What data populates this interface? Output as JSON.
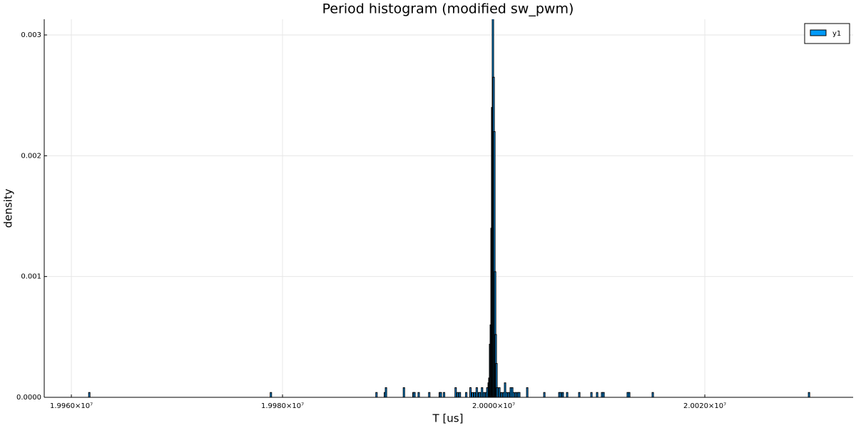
{
  "chart_data": {
    "type": "bar",
    "title": "Period histogram (modified sw_pwm)",
    "x_label": "T [us]",
    "y_label": "density",
    "series": [
      {
        "name": "y1",
        "color": "#009af9",
        "edge_color": "#000000",
        "x": [
          19961700,
          19978900,
          19988900,
          19989700,
          19989800,
          19991500,
          19992400,
          19992500,
          19992900,
          19993900,
          19994900,
          19995000,
          19995300,
          19996400,
          19996600,
          19996800,
          19997400,
          19997800,
          19998000,
          19998200,
          19998400,
          19998600,
          19998700,
          19998900,
          19999100,
          19999300,
          19999400,
          19999530,
          19999590,
          19999660,
          19999730,
          19999800,
          19999860,
          19999930,
          20000000,
          20000070,
          20000140,
          20000200,
          20000270,
          20000340,
          20000540,
          20000740,
          20000950,
          20001080,
          20001220,
          20001420,
          20001620,
          20001760,
          20001890,
          20002100,
          20002300,
          20002430,
          20003180,
          20004800,
          20006220,
          20006350,
          20006550,
          20006960,
          20008110,
          20009260,
          20009800,
          20010270,
          20010410,
          20012700,
          20012840,
          20015070,
          20029870
        ],
        "values": [
          4e-05,
          4e-05,
          4e-05,
          4e-05,
          8e-05,
          8e-05,
          4e-05,
          4e-05,
          4e-05,
          4e-05,
          4e-05,
          4e-05,
          4e-05,
          8e-05,
          4e-05,
          4e-05,
          4e-05,
          8e-05,
          4e-05,
          4e-05,
          8e-05,
          4e-05,
          4e-05,
          8e-05,
          4e-05,
          4e-05,
          8e-05,
          0.00012,
          0.00016,
          0.00044,
          0.0006,
          0.0014,
          0.0024,
          0.0032,
          0.00265,
          0.0022,
          0.00104,
          0.00052,
          0.00028,
          8e-05,
          8e-05,
          4e-05,
          4e-05,
          0.00012,
          4e-05,
          4e-05,
          8e-05,
          8e-05,
          4e-05,
          4e-05,
          4e-05,
          4e-05,
          8e-05,
          4e-05,
          4e-05,
          4e-05,
          4e-05,
          4e-05,
          4e-05,
          4e-05,
          4e-05,
          4e-05,
          4e-05,
          4e-05,
          4e-05,
          4e-05,
          4e-05
        ]
      }
    ],
    "xlim": [
      19957430,
      20034050
    ],
    "ylim": [
      0,
      0.00313
    ],
    "xticks": [
      {
        "value": 19960000,
        "label": "1.9960×10⁷"
      },
      {
        "value": 19980000,
        "label": "1.9980×10⁷"
      },
      {
        "value": 20000000,
        "label": "2.0000×10⁷"
      },
      {
        "value": 20020000,
        "label": "2.0020×10⁷"
      }
    ],
    "yticks": [
      {
        "value": 0,
        "label": "0.0000"
      },
      0.001,
      0.002,
      0.003
    ],
    "grid": true,
    "legend": "top-right"
  }
}
